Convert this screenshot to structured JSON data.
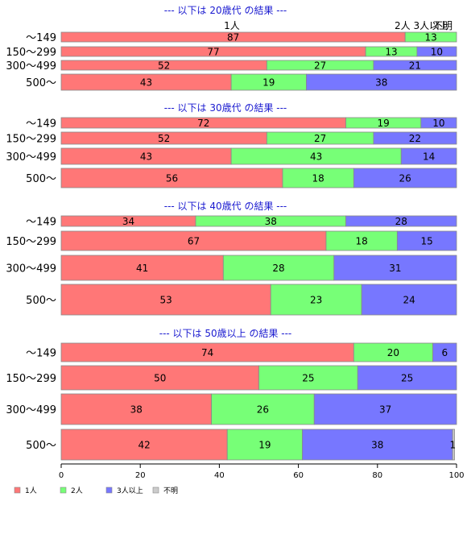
{
  "chart_data": {
    "type": "bar",
    "orientation": "horizontal",
    "stacked": true,
    "xlim": [
      0,
      100
    ],
    "x_ticks": [
      "0",
      "20",
      "40",
      "60",
      "80",
      "100"
    ],
    "categories": [
      "〜149",
      "150〜299",
      "300〜499",
      "500〜"
    ],
    "series": [
      {
        "name": "1人",
        "color": "#ff7777"
      },
      {
        "name": "2人",
        "color": "#77ff77"
      },
      {
        "name": "3人以上",
        "color": "#7777ff"
      },
      {
        "name": "不明",
        "color": "#cccccc"
      }
    ],
    "top_labels": {
      "one": "1人",
      "two_three": "2人 3人以上",
      "unknown": "不明"
    },
    "groups": [
      {
        "title": "--- 以下は 20歳代 の結果 ---",
        "values": [
          [
            87,
            13,
            0,
            0
          ],
          [
            77,
            13,
            10,
            0
          ],
          [
            52,
            27,
            21,
            0
          ],
          [
            43,
            19,
            38,
            0
          ]
        ]
      },
      {
        "title": "--- 以下は 30歳代 の結果 ---",
        "values": [
          [
            72,
            19,
            10,
            0
          ],
          [
            52,
            27,
            22,
            0
          ],
          [
            43,
            43,
            14,
            0
          ],
          [
            56,
            18,
            26,
            0
          ]
        ]
      },
      {
        "title": "--- 以下は 40歳代 の結果 ---",
        "values": [
          [
            34,
            38,
            28,
            0
          ],
          [
            67,
            18,
            15,
            1
          ],
          [
            41,
            28,
            31,
            0.5
          ],
          [
            53,
            23,
            24,
            0
          ]
        ]
      },
      {
        "title": "--- 以下は 50歳以上 の結果 ---",
        "values": [
          [
            74,
            20,
            6,
            0
          ],
          [
            50,
            25,
            25,
            1
          ],
          [
            38,
            26,
            37,
            0
          ],
          [
            42,
            19,
            38,
            0.5
          ]
        ]
      }
    ]
  },
  "colors": {
    "title": "#1a1ad0",
    "axis": "#000000",
    "bar_border": "#888888"
  }
}
